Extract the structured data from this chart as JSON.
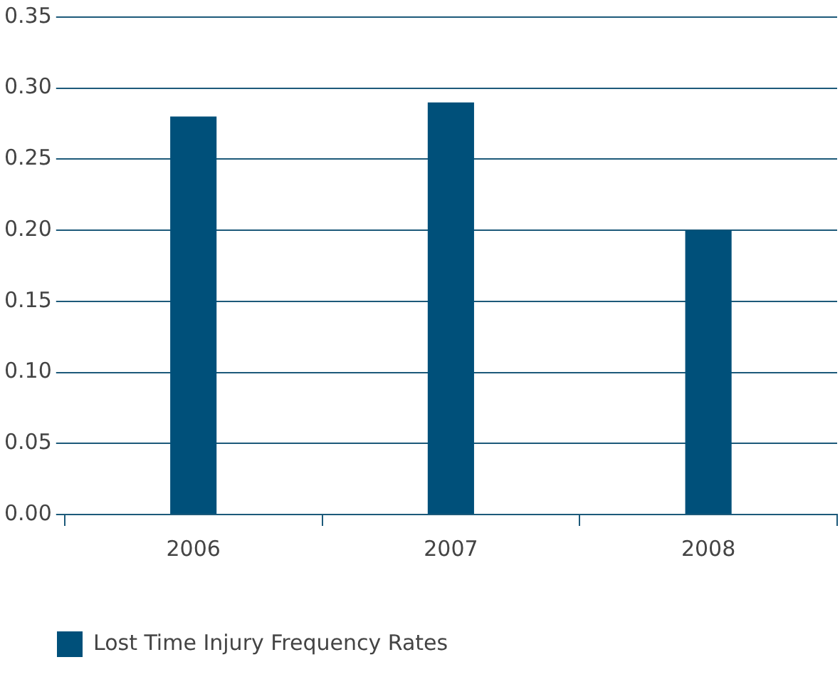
{
  "chart_data": {
    "type": "bar",
    "categories": [
      "2006",
      "2007",
      "2008"
    ],
    "series": [
      {
        "name": "Lost Time Injury Frequency Rates",
        "color": "#00507a",
        "values": [
          0.28,
          0.29,
          0.2
        ]
      }
    ],
    "ylim": [
      0,
      0.35
    ],
    "yticks": [
      {
        "value": 0,
        "label": "0.00"
      },
      {
        "value": 0.05,
        "label": "0.05"
      },
      {
        "value": 0.1,
        "label": "0.10"
      },
      {
        "value": 0.15,
        "label": "0.15"
      },
      {
        "value": 0.2,
        "label": "0.20"
      },
      {
        "value": 0.25,
        "label": "0.25"
      },
      {
        "value": 0.3,
        "label": "0.30"
      },
      {
        "value": 0.35,
        "label": "0.35"
      }
    ],
    "grid": "y",
    "legend": "bottom left"
  }
}
